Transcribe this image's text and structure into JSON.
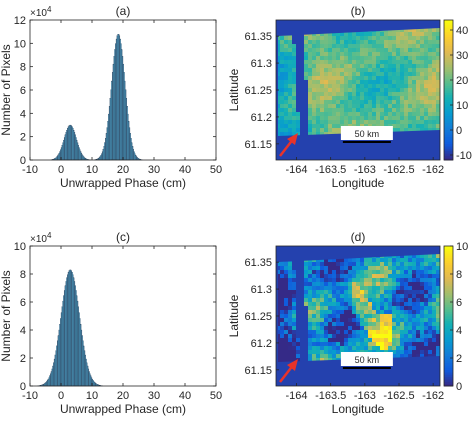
{
  "chart_data": [
    {
      "id": "a",
      "panel_label": "(a)",
      "type": "bar",
      "xlabel": "Unwrapped Phase (cm)",
      "ylabel": "Number of Pixels",
      "exponent_label": "×10",
      "exponent_power": "4",
      "xlim": [
        -10,
        50
      ],
      "ylim": [
        0,
        12
      ],
      "xticks": [
        "-10",
        "0",
        "10",
        "20",
        "30",
        "40",
        "50"
      ],
      "yticks": [
        "0",
        "2",
        "4",
        "6",
        "8",
        "10",
        "12"
      ],
      "series_color": "#4a9cc0",
      "edge_color": "#1f2f4a",
      "peaks": [
        {
          "center": 3.0,
          "height": 3.0,
          "sigma": 2.0
        },
        {
          "center": 18.5,
          "height": 10.8,
          "sigma": 2.2
        }
      ]
    },
    {
      "id": "b",
      "panel_label": "(b)",
      "type": "heatmap",
      "xlabel": "Longitude",
      "ylabel": "Latitude",
      "xlim": [
        -164.3,
        -161.9
      ],
      "ylim": [
        61.12,
        61.38
      ],
      "xticks": [
        "-164",
        "-163.5",
        "-163",
        "-162.5",
        "-162"
      ],
      "xtick_values": [
        -164,
        -163.5,
        -163,
        -162.5,
        -162
      ],
      "yticks": [
        "61.15",
        "61.2",
        "61.25",
        "61.3",
        "61.35"
      ],
      "ytick_values": [
        61.15,
        61.2,
        61.25,
        61.3,
        61.35
      ],
      "colorbar_ticks": [
        "-10",
        "0",
        "10",
        "20",
        "30",
        "40"
      ],
      "colorbar_range": [
        -12,
        44
      ],
      "colormap": "parula",
      "scale_label": "50 km",
      "arrow_color": "#e8332a"
    },
    {
      "id": "c",
      "panel_label": "(c)",
      "type": "bar",
      "xlabel": "Unwrapped Phase (cm)",
      "ylabel": "Number of Pixels",
      "exponent_label": "×10",
      "exponent_power": "4",
      "xlim": [
        -10,
        50
      ],
      "ylim": [
        0,
        10
      ],
      "xticks": [
        "-10",
        "0",
        "10",
        "20",
        "30",
        "40",
        "50"
      ],
      "yticks": [
        "0",
        "2",
        "4",
        "6",
        "8",
        "10"
      ],
      "series_color": "#4a9cc0",
      "edge_color": "#1f2f4a",
      "peaks": [
        {
          "center": 3.0,
          "height": 8.3,
          "sigma": 3.0
        }
      ]
    },
    {
      "id": "d",
      "panel_label": "(d)",
      "type": "heatmap",
      "xlabel": "Longitude",
      "ylabel": "Latitude",
      "xlim": [
        -164.3,
        -161.9
      ],
      "ylim": [
        61.12,
        61.38
      ],
      "xticks": [
        "-164",
        "-163.5",
        "-163",
        "-162.5",
        "-162"
      ],
      "xtick_values": [
        -164,
        -163.5,
        -163,
        -162.5,
        -162
      ],
      "yticks": [
        "61.15",
        "61.2",
        "61.25",
        "61.3",
        "61.35"
      ],
      "ytick_values": [
        61.15,
        61.2,
        61.25,
        61.3,
        61.35
      ],
      "colorbar_ticks": [
        "0",
        "2",
        "4",
        "6",
        "8",
        "10"
      ],
      "colorbar_range": [
        0,
        10
      ],
      "colormap": "parula",
      "scale_label": "50 km",
      "arrow_color": "#e8332a"
    }
  ]
}
